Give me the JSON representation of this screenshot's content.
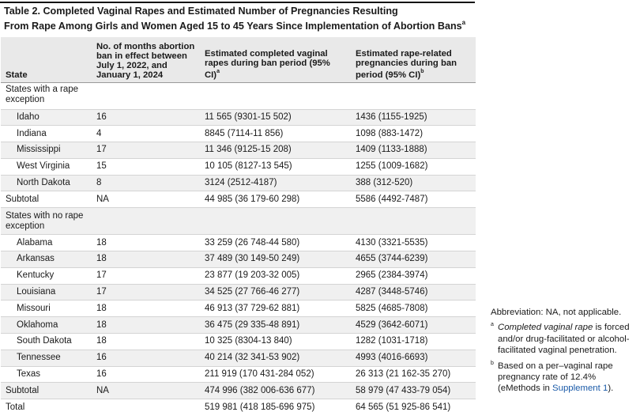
{
  "title": {
    "line1": "Table 2. Completed Vaginal Rapes and Estimated Number of Pregnancies Resulting",
    "line2": "From Rape Among Girls and Women Aged 15 to 45 Years Since Implementation of Abortion Bans",
    "marker": "a"
  },
  "headers": {
    "state": "State",
    "months": "No. of months abortion ban in effect between July 1, 2022, and January 1, 2024",
    "rapes": "Estimated completed vaginal rapes during ban period (95% CI)",
    "rapes_marker": "a",
    "pregnancies": "Estimated rape-related pregnancies during ban period (95% CI)",
    "pregnancies_marker": "b"
  },
  "groups": {
    "with_exception": "States with a rape exception",
    "no_exception": "States with no rape exception"
  },
  "rows_with_exception": [
    {
      "state": "Idaho",
      "months": "16",
      "rapes": "11 565 (9301-15 502)",
      "pregnancies": "1436 (1155-1925)"
    },
    {
      "state": "Indiana",
      "months": "4",
      "rapes": "8845 (7114-11 856)",
      "pregnancies": "1098 (883-1472)"
    },
    {
      "state": "Mississippi",
      "months": "17",
      "rapes": "11 346 (9125-15 208)",
      "pregnancies": "1409 (1133-1888)"
    },
    {
      "state": "West Virginia",
      "months": "15",
      "rapes": "10 105 (8127-13 545)",
      "pregnancies": "1255 (1009-1682)"
    },
    {
      "state": "North Dakota",
      "months": "8",
      "rapes": "3124 (2512-4187)",
      "pregnancies": "388 (312-520)"
    }
  ],
  "subtotal_with_exception": {
    "label": "Subtotal",
    "months": "NA",
    "rapes": "44 985 (36 179-60 298)",
    "pregnancies": "5586 (4492-7487)"
  },
  "rows_no_exception": [
    {
      "state": "Alabama",
      "months": "18",
      "rapes": "33 259 (26 748-44 580)",
      "pregnancies": "4130 (3321-5535)"
    },
    {
      "state": "Arkansas",
      "months": "18",
      "rapes": "37 489 (30 149-50 249)",
      "pregnancies": "4655 (3744-6239)"
    },
    {
      "state": "Kentucky",
      "months": "17",
      "rapes": "23 877 (19 203-32 005)",
      "pregnancies": "2965 (2384-3974)"
    },
    {
      "state": "Louisiana",
      "months": "17",
      "rapes": "34 525 (27 766-46 277)",
      "pregnancies": "4287 (3448-5746)"
    },
    {
      "state": "Missouri",
      "months": "18",
      "rapes": "46 913 (37 729-62 881)",
      "pregnancies": "5825 (4685-7808)"
    },
    {
      "state": "Oklahoma",
      "months": "18",
      "rapes": "36 475 (29 335-48 891)",
      "pregnancies": "4529 (3642-6071)"
    },
    {
      "state": "South Dakota",
      "months": "18",
      "rapes": "10 325 (8304-13 840)",
      "pregnancies": "1282 (1031-1718)"
    },
    {
      "state": "Tennessee",
      "months": "16",
      "rapes": "40 214 (32 341-53 902)",
      "pregnancies": "4993 (4016-6693)"
    },
    {
      "state": "Texas",
      "months": "16",
      "rapes": "211 919 (170 431-284 052)",
      "pregnancies": "26 313 (21 162-35 270)"
    }
  ],
  "subtotal_no_exception": {
    "label": "Subtotal",
    "months": "NA",
    "rapes": "474 996 (382 006-636 677)",
    "pregnancies": "58 979 (47 433-79 054)"
  },
  "total": {
    "label": "Total",
    "months": "",
    "rapes": "519 981 (418 185-696 975)",
    "pregnancies": "64 565 (51 925-86 541)"
  },
  "notes": {
    "abbrev": "Abbreviation: NA, not applicable.",
    "a_marker": "a",
    "a_italic": "Completed vaginal rape",
    "a_rest": " is forced and/or drug-facilitated or alcohol-facilitated vaginal penetration.",
    "b_marker": "b",
    "b_text": "Based on a per–vaginal rape pregnancy rate of 12.4% (eMethods in ",
    "b_link": "Supplement 1",
    "b_end": ")."
  }
}
